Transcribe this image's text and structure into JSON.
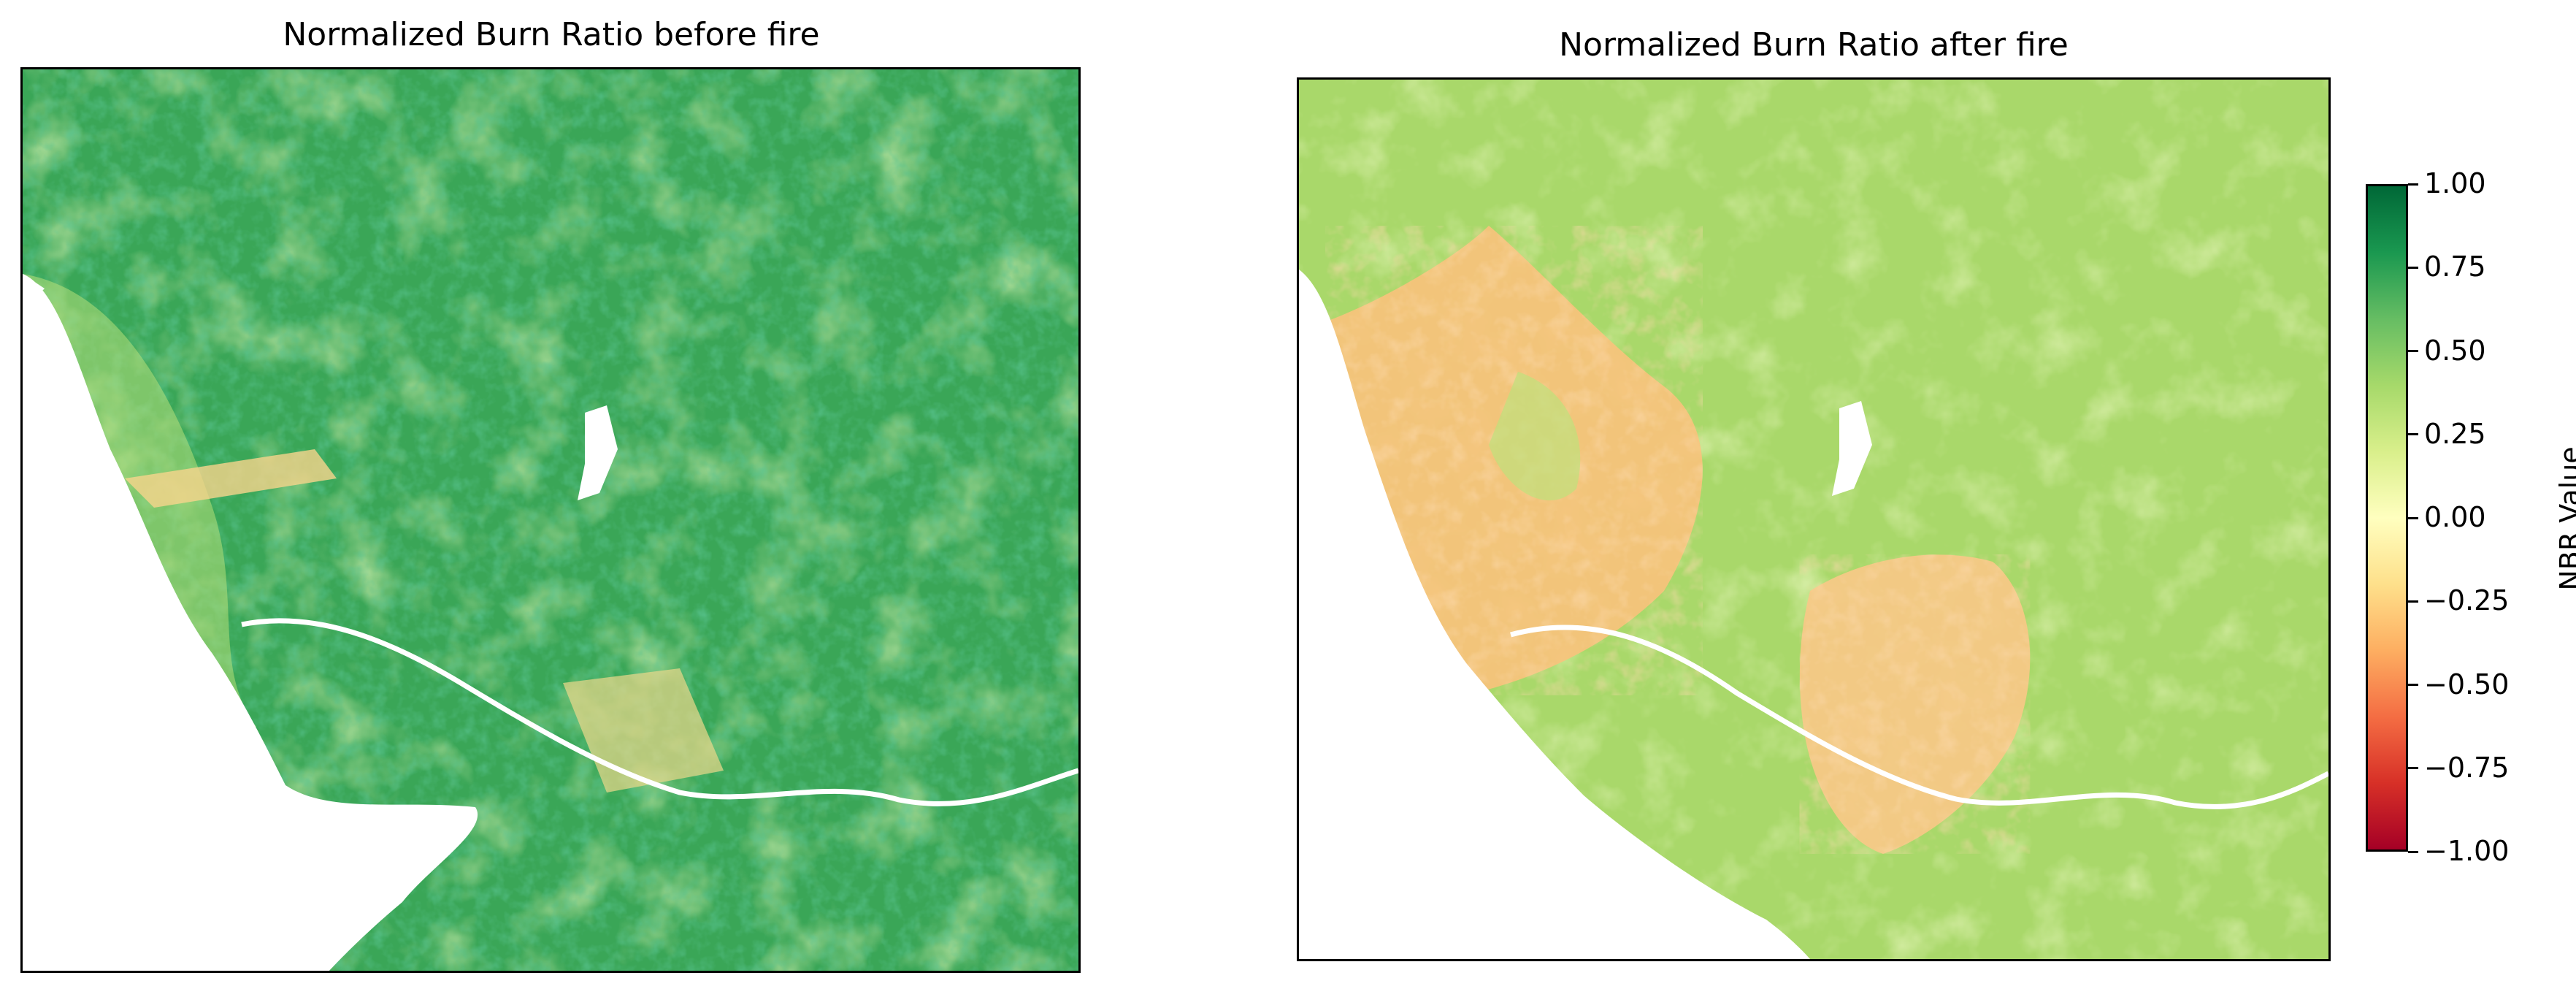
{
  "chart_data": [
    {
      "type": "heatmap",
      "title": "Normalized Burn Ratio before fire",
      "colormap": "RdYlGn",
      "dominant_color": "#34a853",
      "no_data_color": "#ffffff",
      "xlabel": "",
      "ylabel": ""
    },
    {
      "type": "heatmap",
      "title": "Normalized Burn Ratio after fire",
      "colormap": "RdYlGn",
      "dominant_color": "#a6d96a",
      "no_data_color": "#ffffff",
      "xlabel": "",
      "ylabel": ""
    }
  ],
  "colorbar": {
    "label": "NBR Value",
    "range": [
      -1.0,
      1.0
    ],
    "ticks": [
      "1.00",
      "0.75",
      "0.50",
      "0.25",
      "0.00",
      "−0.25",
      "−0.50",
      "−0.75",
      "−1.00"
    ],
    "tick_values": [
      1.0,
      0.75,
      0.5,
      0.25,
      0.0,
      -0.25,
      -0.5,
      -0.75,
      -1.0
    ],
    "colors": [
      "#006837",
      "#1a9850",
      "#66bd63",
      "#a6d96a",
      "#d9ef8b",
      "#ffffbf",
      "#fee08b",
      "#fdae61",
      "#f46d43",
      "#d73027",
      "#a50026"
    ]
  }
}
